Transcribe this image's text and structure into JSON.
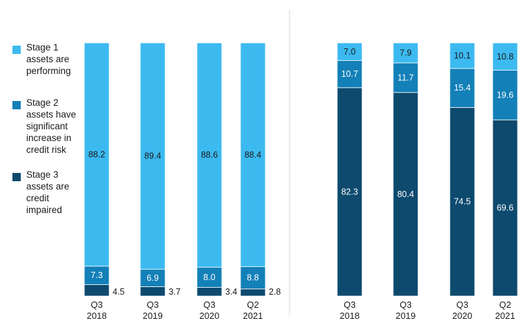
{
  "chart_data": [
    {
      "type": "bar",
      "stacked": true,
      "categories": [
        [
          "Q3",
          "2018"
        ],
        [
          "Q3",
          "2019"
        ],
        [
          "Q3",
          "2020"
        ],
        [
          "Q2",
          "2021"
        ]
      ],
      "series": [
        {
          "name": "Stage 3 assets are credit impaired",
          "color": "#0d4a6e",
          "values": [
            4.5,
            3.7,
            3.4,
            2.8
          ]
        },
        {
          "name": "Stage 2 assets have significant increase in credit risk",
          "color": "#1380b8",
          "values": [
            7.3,
            6.9,
            8.0,
            8.8
          ]
        },
        {
          "name": "Stage 1 assets are performing",
          "color": "#3cbaf0",
          "values": [
            88.2,
            89.4,
            88.6,
            88.4
          ]
        }
      ],
      "ylim": [
        0,
        100
      ]
    },
    {
      "type": "bar",
      "stacked": true,
      "categories": [
        [
          "Q3",
          "2018"
        ],
        [
          "Q3",
          "2019"
        ],
        [
          "Q3",
          "2020"
        ],
        [
          "Q2",
          "2021"
        ]
      ],
      "series": [
        {
          "name": "Stage 3 assets are credit impaired",
          "color": "#0d4a6e",
          "values": [
            82.3,
            80.4,
            74.5,
            69.6
          ]
        },
        {
          "name": "Stage 2 assets have significant increase in credit risk",
          "color": "#1380b8",
          "values": [
            10.7,
            11.7,
            15.4,
            19.6
          ]
        },
        {
          "name": "Stage 1 assets are performing",
          "color": "#3cbaf0",
          "values": [
            7.0,
            7.9,
            10.1,
            10.8
          ]
        }
      ],
      "ylim": [
        0,
        100
      ]
    }
  ],
  "legend": {
    "items": [
      {
        "label": "Stage 1\nassets are\nperforming",
        "color": "#3cbaf0"
      },
      {
        "label": "Stage 2\nassets have\nsignificant\nincrease in\ncredit risk",
        "color": "#1380b8"
      },
      {
        "label": "Stage 3\nassets are\ncredit\nimpaired",
        "color": "#0d4a6e"
      }
    ]
  }
}
